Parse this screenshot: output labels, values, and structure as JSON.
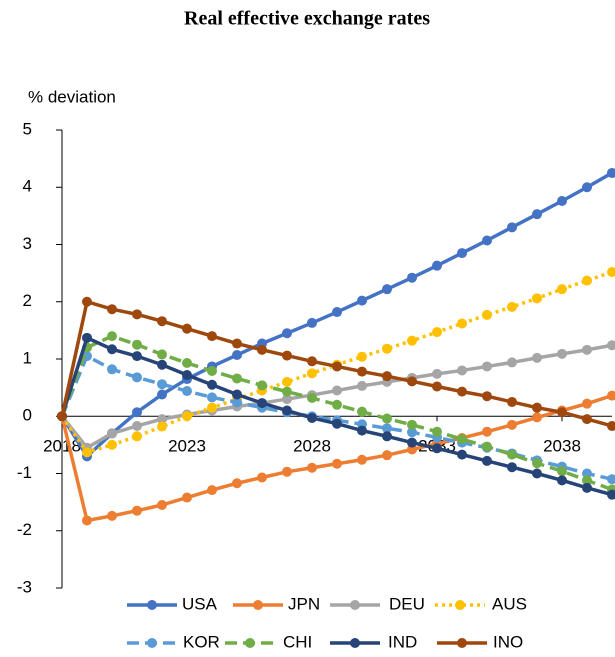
{
  "chart_data": {
    "type": "line",
    "title": "Real effective exchange rates",
    "y_label": "% deviation",
    "x": [
      2018,
      2019,
      2020,
      2021,
      2022,
      2023,
      2024,
      2025,
      2026,
      2027,
      2028,
      2029,
      2030,
      2031,
      2032,
      2033,
      2034,
      2035,
      2036,
      2037,
      2038,
      2039,
      2040
    ],
    "xlim": [
      2018,
      2040
    ],
    "xticks": [
      2018,
      2023,
      2028,
      2033,
      2038
    ],
    "ylim": [
      -3,
      5
    ],
    "yticks": [
      -3,
      -2,
      -1,
      0,
      1,
      2,
      3,
      4,
      5
    ],
    "series": [
      {
        "name": "USA",
        "color": "#4472c4",
        "style": "solid",
        "values": [
          0,
          -0.7,
          -0.3,
          0.07,
          0.38,
          0.65,
          0.87,
          1.07,
          1.27,
          1.45,
          1.63,
          1.82,
          2.02,
          2.22,
          2.42,
          2.63,
          2.85,
          3.07,
          3.3,
          3.53,
          3.76,
          4.0,
          4.25
        ]
      },
      {
        "name": "JPN",
        "color": "#ed7d31",
        "style": "solid",
        "values": [
          0,
          -1.82,
          -1.74,
          -1.65,
          -1.55,
          -1.42,
          -1.29,
          -1.17,
          -1.07,
          -0.97,
          -0.9,
          -0.83,
          -0.76,
          -0.68,
          -0.58,
          -0.48,
          -0.38,
          -0.27,
          -0.15,
          -0.02,
          0.1,
          0.22,
          0.36
        ]
      },
      {
        "name": "DEU",
        "color": "#a5a5a5",
        "style": "solid",
        "values": [
          0,
          -0.55,
          -0.3,
          -0.17,
          -0.05,
          0.03,
          0.1,
          0.17,
          0.23,
          0.3,
          0.37,
          0.45,
          0.53,
          0.6,
          0.67,
          0.74,
          0.8,
          0.87,
          0.94,
          1.02,
          1.09,
          1.16,
          1.24
        ]
      },
      {
        "name": "AUS",
        "color": "#ffc000",
        "style": "dotted",
        "values": [
          0,
          -0.63,
          -0.5,
          -0.35,
          -0.18,
          0.0,
          0.15,
          0.3,
          0.45,
          0.6,
          0.75,
          0.9,
          1.04,
          1.18,
          1.32,
          1.47,
          1.62,
          1.77,
          1.91,
          2.06,
          2.22,
          2.37,
          2.52
        ]
      },
      {
        "name": "KOR",
        "color": "#5b9bd5",
        "style": "dashed",
        "values": [
          0,
          1.05,
          0.82,
          0.68,
          0.56,
          0.44,
          0.33,
          0.24,
          0.15,
          0.07,
          0.0,
          -0.07,
          -0.14,
          -0.21,
          -0.28,
          -0.37,
          -0.46,
          -0.55,
          -0.65,
          -0.77,
          -0.88,
          -1.0,
          -1.1
        ]
      },
      {
        "name": "CHI",
        "color": "#70ad47",
        "style": "dashed",
        "values": [
          0,
          1.2,
          1.4,
          1.25,
          1.08,
          0.93,
          0.79,
          0.66,
          0.54,
          0.43,
          0.32,
          0.2,
          0.08,
          -0.04,
          -0.15,
          -0.27,
          -0.4,
          -0.53,
          -0.67,
          -0.82,
          -0.96,
          -1.12,
          -1.28
        ]
      },
      {
        "name": "IND",
        "color": "#264478",
        "style": "solid",
        "values": [
          0,
          1.37,
          1.17,
          1.05,
          0.9,
          0.72,
          0.55,
          0.38,
          0.23,
          0.1,
          -0.03,
          -0.13,
          -0.25,
          -0.35,
          -0.46,
          -0.56,
          -0.67,
          -0.78,
          -0.89,
          -1.0,
          -1.12,
          -1.25,
          -1.37
        ]
      },
      {
        "name": "INO",
        "color": "#9e480e",
        "style": "solid",
        "values": [
          0,
          2.0,
          1.87,
          1.78,
          1.66,
          1.53,
          1.4,
          1.27,
          1.16,
          1.06,
          0.96,
          0.87,
          0.78,
          0.7,
          0.61,
          0.52,
          0.43,
          0.35,
          0.25,
          0.15,
          0.07,
          -0.05,
          -0.17
        ]
      }
    ]
  }
}
